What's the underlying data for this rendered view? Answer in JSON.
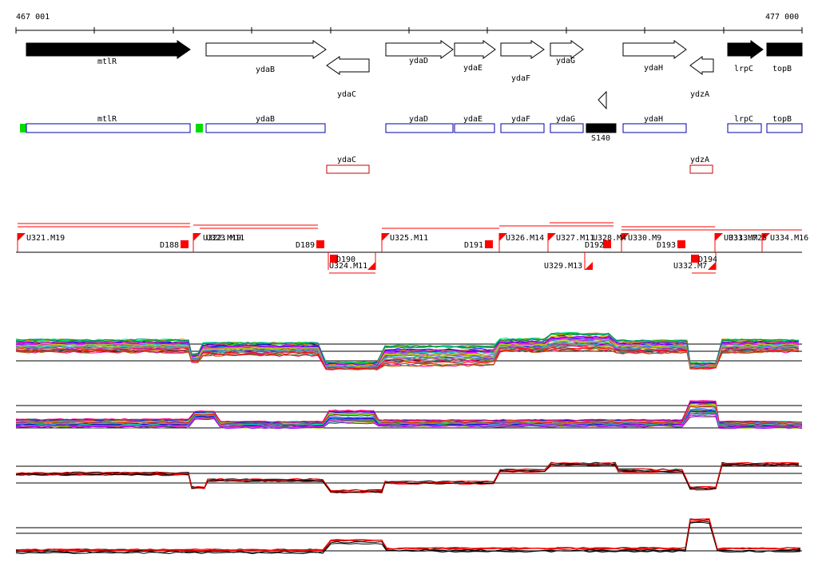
{
  "coord_start": "467 001",
  "coord_end": "477 000",
  "genes": [
    {
      "label": "mtlR",
      "strand": "+",
      "filled": true
    },
    {
      "label": "ydaB",
      "strand": "+",
      "filled": false
    },
    {
      "label": "ydaC",
      "strand": "-",
      "filled": false
    },
    {
      "label": "ydaD",
      "strand": "+",
      "filled": false
    },
    {
      "label": "ydaE",
      "strand": "+",
      "filled": false
    },
    {
      "label": "ydaF",
      "strand": "+",
      "filled": false
    },
    {
      "label": "ydaG",
      "strand": "+",
      "filled": false
    },
    {
      "label": "ydaH",
      "strand": "+",
      "filled": false
    },
    {
      "label": "ydzA",
      "strand": "-",
      "filled": false
    },
    {
      "label": "lrpC",
      "strand": "+",
      "filled": true
    },
    {
      "label": "topB",
      "strand": "+",
      "filled": true
    }
  ],
  "annotation_boxes": [
    {
      "label": "mtlR",
      "color": "#0000aa"
    },
    {
      "label": "ydaB",
      "color": "#0000aa"
    },
    {
      "label": "ydaD",
      "color": "#0000aa"
    },
    {
      "label": "ydaE",
      "color": "#0000aa"
    },
    {
      "label": "ydaF",
      "color": "#0000aa"
    },
    {
      "label": "ydaG",
      "color": "#0000aa"
    },
    {
      "label": "S140",
      "color": "#000000"
    },
    {
      "label": "ydaH",
      "color": "#0000aa"
    },
    {
      "label": "lrpC",
      "color": "#0000aa"
    },
    {
      "label": "topB",
      "color": "#0000aa"
    },
    {
      "label": "ydaC",
      "color": "#cc0000"
    },
    {
      "label": "ydzA",
      "color": "#cc0000"
    }
  ],
  "segment_labels": [
    "U321.M19",
    "D188",
    "U322.M19",
    "U323.M11",
    "D189",
    "U325.M11",
    "D191",
    "U326.M14",
    "U327.M11",
    "U328.M4",
    "D192",
    "U330.M9",
    "D193",
    "U331.M7",
    "U333.M25",
    "U334.M16",
    "D190",
    "U324.M11",
    "U329.M13",
    "D194",
    "U332.M7"
  ],
  "colors": {
    "segment": "#ff0000",
    "annotation_marker": "#00dd00",
    "gene_fill": "#000000"
  }
}
